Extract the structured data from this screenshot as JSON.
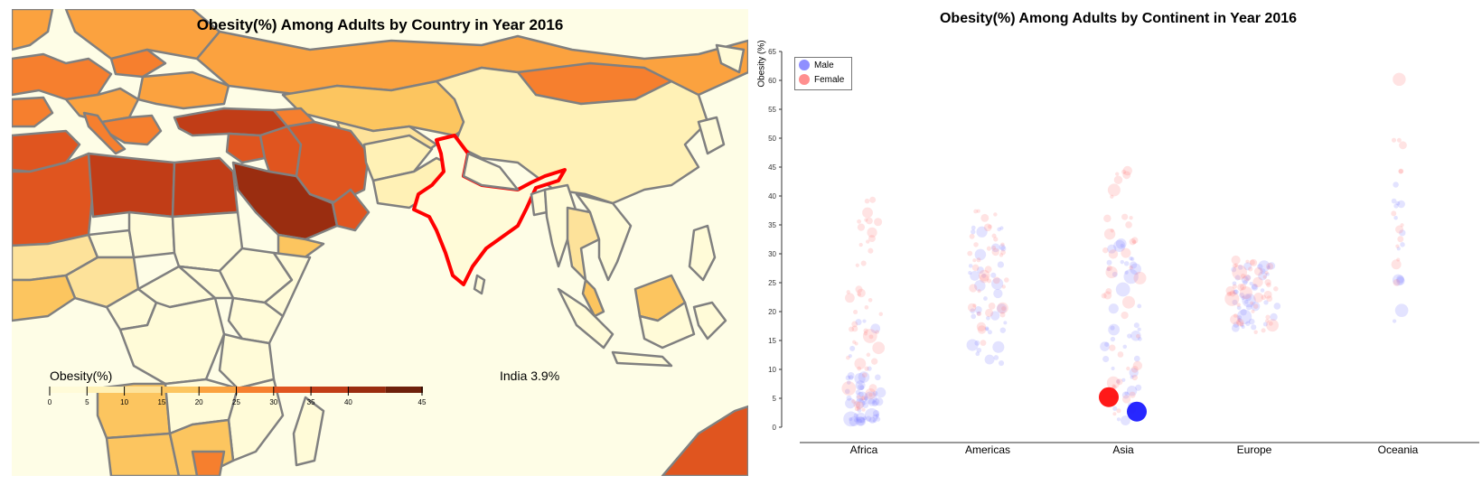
{
  "map": {
    "title": "Obesity(%) Among Adults by Country in Year 2016",
    "legend_title": "Obesity(%)",
    "legend_ticks": [
      "0",
      "5",
      "10",
      "15",
      "20",
      "25",
      "30",
      "35",
      "40",
      "45"
    ],
    "legend_colors": [
      "#fffbd8",
      "#fff1b6",
      "#fde29a",
      "#fcc55f",
      "#fba23f",
      "#f67f2e",
      "#e0551f",
      "#c13d17",
      "#9a2d10",
      "#6e210b"
    ],
    "tooltip": "India 3.9%",
    "highlight_color": "#ff0000"
  },
  "chart_data": {
    "type": "scatter",
    "title": "Obesity(%) Among Adults by Continent in Year 2016",
    "ylabel": "Obesity (%)",
    "ylim": [
      0,
      65
    ],
    "y_ticks": [
      "0",
      "5",
      "10",
      "15",
      "20",
      "25",
      "30",
      "35",
      "40",
      "45",
      "50",
      "55",
      "60",
      "65"
    ],
    "categories": [
      "Africa",
      "Americas",
      "Asia",
      "Europe",
      "Oceania"
    ],
    "series": [
      {
        "name": "Male",
        "color": "#8080ff"
      },
      {
        "name": "Female",
        "color": "#ff8080"
      }
    ],
    "highlighted": [
      {
        "series": "Female",
        "category": "Asia",
        "value": 5.2,
        "color": "#ff0000"
      },
      {
        "series": "Male",
        "category": "Asia",
        "value": 2.7,
        "color": "#1010ff"
      }
    ],
    "clusters": [
      {
        "category": "Africa",
        "male": [
          1,
          20
        ],
        "female": [
          3,
          41
        ]
      },
      {
        "category": "Americas",
        "male": [
          11,
          35
        ],
        "female": [
          14,
          38
        ]
      },
      {
        "category": "Asia",
        "male": [
          1,
          32
        ],
        "female": [
          2,
          45
        ]
      },
      {
        "category": "Europe",
        "male": [
          17,
          28
        ],
        "female": [
          16,
          29
        ]
      },
      {
        "category": "Oceania",
        "male": [
          16,
          42
        ],
        "female": [
          25,
          63
        ]
      }
    ]
  }
}
